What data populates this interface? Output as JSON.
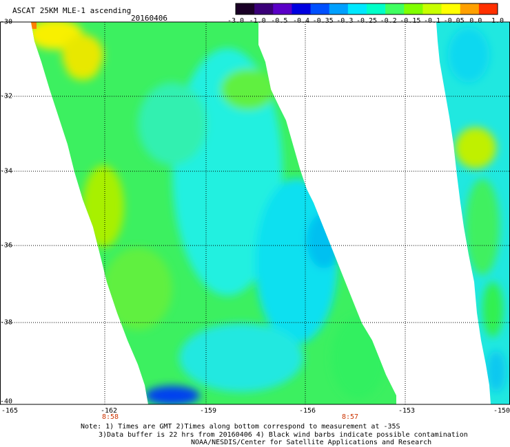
{
  "header": {
    "title": "ASCAT 25KM MLE-1 ascending",
    "date": "20160406"
  },
  "colorbar": {
    "labels": [
      "-3.0",
      "-1.0",
      "-0.5",
      "-0.4",
      "-0.35",
      "-0.3",
      "-0.25",
      "-0.2",
      "-0.15",
      "-0.1",
      "-0.05",
      "0.0",
      "1.0"
    ],
    "colors": [
      "#1a0026",
      "#3a0078",
      "#5a00c8",
      "#0000e0",
      "#0050ff",
      "#00a0ff",
      "#00e8ff",
      "#00ffc8",
      "#40ff60",
      "#80ff00",
      "#c8ff00",
      "#ffff00",
      "#ffa000",
      "#ff3000"
    ]
  },
  "axes": {
    "y_labels": [
      "-30",
      "-32",
      "-34",
      "-36",
      "-38",
      "-40"
    ],
    "x_labels": [
      "-165",
      "-162",
      "-159",
      "-156",
      "-153",
      "-150"
    ],
    "time_labels": [
      "8:58",
      "8:57"
    ],
    "time_color": "#cc3300"
  },
  "notes": {
    "line1": "Note: 1) Times are GMT 2)Times along bottom correspond to measurement at -35S",
    "line2": "3)Data buffer is 22 hrs from 20160406 4) Black wind barbs indicate possible contamination",
    "line3": "NOAA/NESDIS/Center for Satellite Applications and Research"
  }
}
